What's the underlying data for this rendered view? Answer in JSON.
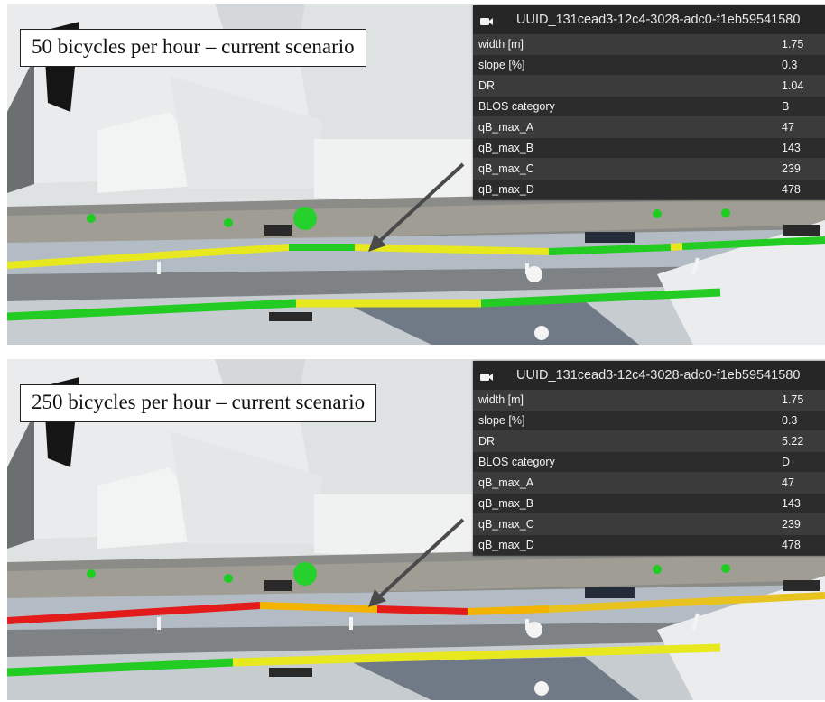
{
  "panels": [
    {
      "caption": "50 bicycles per hour – current scenario",
      "popup": {
        "title": "UUID_131cead3-12c4-3028-adc0-f1eb59541580",
        "camera_icon": "camera-icon",
        "rows": [
          {
            "name": "width [m]",
            "value": "1.75"
          },
          {
            "name": "slope [%]",
            "value": "0.3"
          },
          {
            "name": "DR",
            "value": "1.04"
          },
          {
            "name": "BLOS category",
            "value": "B"
          },
          {
            "name": "qB_max_A",
            "value": "47"
          },
          {
            "name": "qB_max_B",
            "value": "143"
          },
          {
            "name": "qB_max_C",
            "value": "239"
          },
          {
            "name": "qB_max_D",
            "value": "478"
          }
        ]
      }
    },
    {
      "caption": "250 bicycles per hour – current scenario",
      "popup": {
        "title": "UUID_131cead3-12c4-3028-adc0-f1eb59541580",
        "camera_icon": "camera-icon",
        "rows": [
          {
            "name": "width [m]",
            "value": "1.75"
          },
          {
            "name": "slope [%]",
            "value": "0.3"
          },
          {
            "name": "DR",
            "value": "5.22"
          },
          {
            "name": "BLOS category",
            "value": "D"
          },
          {
            "name": "qB_max_A",
            "value": "47"
          },
          {
            "name": "qB_max_B",
            "value": "143"
          },
          {
            "name": "qB_max_C",
            "value": "239"
          },
          {
            "name": "qB_max_D",
            "value": "478"
          }
        ]
      }
    }
  ],
  "colors": {
    "level_green": "#22cc22",
    "level_yellow": "#e8e81e",
    "level_orange": "#f2b400",
    "level_red": "#e41b1b",
    "popup_bg": "#2e2e2e"
  }
}
